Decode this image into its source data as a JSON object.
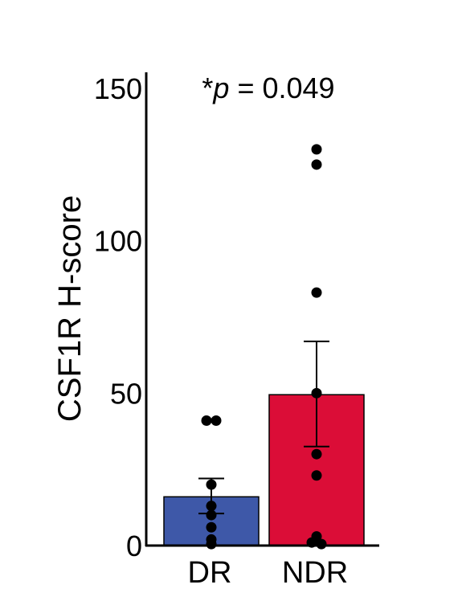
{
  "chart_data": {
    "type": "bar",
    "title": "",
    "xlabel": "",
    "ylabel": "CSF1R H-score",
    "ylim": [
      0,
      150
    ],
    "yticks": [
      0,
      50,
      100,
      150
    ],
    "categories": [
      "DR",
      "NDR"
    ],
    "values": [
      16,
      49.5
    ],
    "error_upper": [
      22,
      67
    ],
    "error_lower": [
      10.5,
      32.5
    ],
    "points": [
      [
        41,
        41,
        20,
        13,
        10,
        6,
        2,
        0.5
      ],
      [
        130,
        125,
        83,
        50,
        30,
        23,
        3,
        1,
        0.5
      ]
    ],
    "bar_colors": [
      "#3e58a8",
      "#db0d37"
    ],
    "annotation": {
      "prefix": "*",
      "italic": "p",
      "rest": " = 0.049"
    },
    "grid": false
  }
}
